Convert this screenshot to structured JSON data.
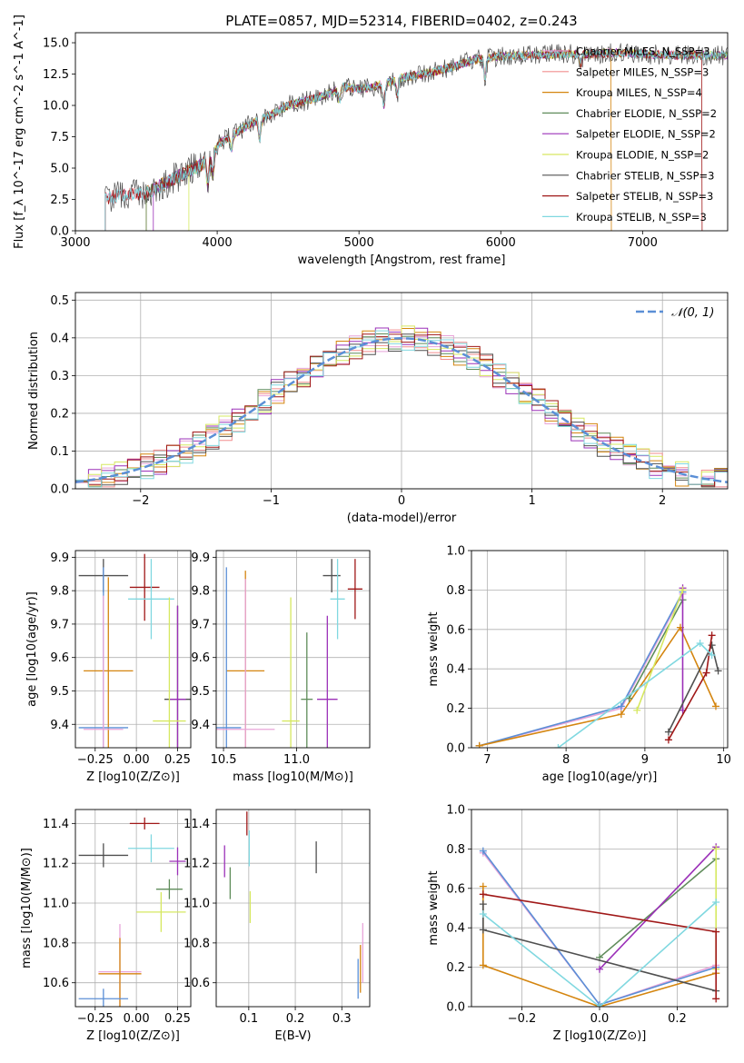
{
  "chart_data": [
    {
      "id": "spectrum",
      "type": "line",
      "title": "PLATE=0857, MJD=52314, FIBERID=0402, z=0.243",
      "xlabel": "wavelength [Angstrom, rest frame]",
      "ylabel": "Flux [f_λ 10^-17 erg cm^-2 s^-1 A^-1]",
      "xlim": [
        3000,
        7600
      ],
      "ylim": [
        0,
        15.8
      ],
      "xticks": [
        3000,
        4000,
        5000,
        6000,
        7000
      ],
      "yticks": [
        0.0,
        2.5,
        5.0,
        7.5,
        10.0,
        12.5,
        15.0
      ],
      "ytick_labels": [
        "0.0",
        "2.5",
        "5.0",
        "7.5",
        "10.0",
        "12.5",
        "15.0"
      ],
      "grid": false,
      "legend_position": "right",
      "continuum_x": [
        3200,
        3300,
        3400,
        3500,
        3600,
        3700,
        3800,
        3900,
        4000,
        4100,
        4200,
        4300,
        4400,
        4500,
        4600,
        4700,
        4800,
        4900,
        5000,
        5100,
        5200,
        5300,
        5400,
        5500,
        5600,
        5700,
        5800,
        5900,
        6000,
        6200,
        6400,
        6600,
        6800,
        7000,
        7200,
        7400
      ],
      "continuum_y": [
        2.5,
        2.8,
        2.9,
        3.0,
        3.6,
        4.2,
        4.8,
        5.3,
        6.8,
        7.6,
        8.3,
        8.9,
        9.4,
        10.0,
        10.3,
        10.6,
        11.0,
        11.5,
        11.3,
        11.5,
        11.8,
        12.2,
        12.4,
        12.6,
        12.9,
        13.2,
        13.6,
        13.8,
        13.9,
        14.0,
        14.1,
        14.1,
        14.2,
        14.1,
        14.0,
        14.0
      ],
      "series": [
        {
          "name": "Chabrier MILES, N_SSP=3",
          "color": "#e8a4d9"
        },
        {
          "name": "Salpeter MILES, N_SSP=3",
          "color": "#f28e8e"
        },
        {
          "name": "Kroupa MILES, N_SSP=4",
          "color": "#d4850f"
        },
        {
          "name": "Chabrier ELODIE, N_SSP=2",
          "color": "#5f8c5a"
        },
        {
          "name": "Salpeter ELODIE, N_SSP=2",
          "color": "#9b30b8"
        },
        {
          "name": "Kroupa ELODIE, N_SSP=2",
          "color": "#d6e860"
        },
        {
          "name": "Chabrier STELIB, N_SSP=3",
          "color": "#505050"
        },
        {
          "name": "Salpeter STELIB, N_SSP=3",
          "color": "#a01818"
        },
        {
          "name": "Kroupa STELIB, N_SSP=3",
          "color": "#80d8e0"
        }
      ]
    },
    {
      "id": "residuals",
      "type": "line",
      "xlabel": "(data-model)/error",
      "ylabel": "Normed distribution",
      "xlim": [
        -2.5,
        2.5
      ],
      "ylim": [
        0,
        0.52
      ],
      "xticks": [
        -2,
        -1,
        0,
        1,
        2
      ],
      "xtick_labels": [
        "−2",
        "−1",
        "0",
        "1",
        "2"
      ],
      "yticks": [
        0.0,
        0.1,
        0.2,
        0.3,
        0.4,
        0.5
      ],
      "ytick_labels": [
        "0.0",
        "0.1",
        "0.2",
        "0.3",
        "0.4",
        "0.5"
      ],
      "grid": true,
      "legend_position": "top-right",
      "reference": {
        "name": "𝒩(0, 1)",
        "color": "#5b8fd6",
        "style": "dashed"
      },
      "series": [
        {
          "color": "#e8a4d9"
        },
        {
          "color": "#f28e8e"
        },
        {
          "color": "#d4850f"
        },
        {
          "color": "#5f8c5a"
        },
        {
          "color": "#9b30b8"
        },
        {
          "color": "#d6e860"
        },
        {
          "color": "#505050"
        },
        {
          "color": "#a01818"
        },
        {
          "color": "#80d8e0"
        }
      ]
    },
    {
      "id": "age_vs_Z",
      "type": "scatter",
      "xlabel": "Z [log10(Z/Z⊙)]",
      "ylabel": "age  [log10(age/yr)]",
      "xlim": [
        -0.37,
        0.33
      ],
      "ylim": [
        9.33,
        9.92
      ],
      "xticks": [
        -0.25,
        0.0,
        0.25
      ],
      "xtick_labels": [
        "−0.25",
        "0.00",
        "0.25"
      ],
      "yticks": [
        9.4,
        9.5,
        9.6,
        9.7,
        9.8,
        9.9
      ],
      "ytick_labels": [
        "9.4",
        "9.5",
        "9.6",
        "9.7",
        "9.8",
        "9.9"
      ],
      "grid": true,
      "points": [
        {
          "color": "#505050",
          "x": -0.2,
          "y": 9.845,
          "xerr": 0.15,
          "yerr": 0.05
        },
        {
          "color": "#a01818",
          "x": 0.05,
          "y": 9.81,
          "xerr": 0.09,
          "yerr": 0.1
        },
        {
          "color": "#80d8e0",
          "x": 0.09,
          "y": 9.775,
          "xerr": 0.14,
          "yerr": 0.12
        },
        {
          "color": "#d4850f",
          "x": -0.17,
          "y": 9.56,
          "xerr": 0.15,
          "yerr": 0.28
        },
        {
          "color": "#505050",
          "x": 0.25,
          "y": 9.475,
          "xerr": 0.08,
          "yerr": 0.28
        },
        {
          "color": "#9b30b8",
          "x": 0.25,
          "y": 9.475,
          "xerr": 0.05,
          "yerr": 0.28
        },
        {
          "color": "#d6e860",
          "x": 0.2,
          "y": 9.41,
          "xerr": 0.1,
          "yerr": 0.37
        },
        {
          "color": "#5b8fd6",
          "x": -0.2,
          "y": 9.39,
          "xerr": 0.15,
          "yerr": 0.48
        },
        {
          "color": "#e8a4d9",
          "x": -0.2,
          "y": 9.385,
          "xerr": 0.12,
          "yerr": 0.4
        }
      ]
    },
    {
      "id": "age_vs_mass",
      "type": "scatter",
      "xlabel": "mass [log10(M/M⊙)]",
      "xlim": [
        10.45,
        11.5
      ],
      "ylim": [
        9.33,
        9.92
      ],
      "xticks": [
        10.5,
        11.0
      ],
      "xtick_labels": [
        "10.5",
        "11.0"
      ],
      "yticks": [
        9.4,
        9.5,
        9.6,
        9.7,
        9.8,
        9.9
      ],
      "ytick_labels": [
        "9.4",
        "9.5",
        "9.6",
        "9.7",
        "9.8",
        "9.9"
      ],
      "grid": true,
      "points": [
        {
          "color": "#505050",
          "x": 11.24,
          "y": 9.845,
          "xerr": 0.06,
          "yerr": 0.05
        },
        {
          "color": "#a01818",
          "x": 11.4,
          "y": 9.805,
          "xerr": 0.05,
          "yerr": 0.09
        },
        {
          "color": "#80d8e0",
          "x": 11.28,
          "y": 9.775,
          "xerr": 0.05,
          "yerr": 0.12
        },
        {
          "color": "#d4850f",
          "x": 10.65,
          "y": 9.56,
          "xerr": 0.13,
          "yerr": 0.3
        },
        {
          "color": "#5f8c5a",
          "x": 11.07,
          "y": 9.475,
          "xerr": 0.04,
          "yerr": 0.2
        },
        {
          "color": "#9b30b8",
          "x": 11.21,
          "y": 9.475,
          "xerr": 0.07,
          "yerr": 0.25
        },
        {
          "color": "#d6e860",
          "x": 10.96,
          "y": 9.41,
          "xerr": 0.06,
          "yerr": 0.37
        },
        {
          "color": "#5b8fd6",
          "x": 10.52,
          "y": 9.39,
          "xerr": 0.1,
          "yerr": 0.48
        },
        {
          "color": "#e8a4d9",
          "x": 10.65,
          "y": 9.385,
          "xerr": 0.2,
          "yerr": 0.45
        }
      ]
    },
    {
      "id": "mass_weight_vs_age",
      "type": "line",
      "xlabel": "age  [log10(age/yr)]",
      "ylabel": "mass weight",
      "xlim": [
        6.8,
        10.05
      ],
      "ylim": [
        0,
        1.0
      ],
      "xticks": [
        7,
        8,
        9,
        10
      ],
      "xtick_labels": [
        "7",
        "8",
        "9",
        "10"
      ],
      "yticks": [
        0.0,
        0.2,
        0.4,
        0.6,
        0.8,
        1.0
      ],
      "ytick_labels": [
        "0.0",
        "0.2",
        "0.4",
        "0.6",
        "0.8",
        "1.0"
      ],
      "grid": true,
      "series": [
        {
          "color": "#e8a4d9",
          "x": [
            6.9,
            8.7,
            9.48
          ],
          "y": [
            0.01,
            0.2,
            0.78
          ]
        },
        {
          "color": "#5b8fd6",
          "x": [
            6.9,
            8.7,
            9.48
          ],
          "y": [
            0.01,
            0.21,
            0.79
          ]
        },
        {
          "color": "#d4850f",
          "x": [
            6.9,
            8.7,
            9.45,
            9.9
          ],
          "y": [
            0.01,
            0.17,
            0.61,
            0.21
          ]
        },
        {
          "color": "#5f8c5a",
          "x": [
            8.8,
            9.48
          ],
          "y": [
            0.25,
            0.75
          ]
        },
        {
          "color": "#9b30b8",
          "x": [
            9.48,
            9.48
          ],
          "y": [
            0.19,
            0.81
          ]
        },
        {
          "color": "#d6e860",
          "x": [
            8.9,
            9.48
          ],
          "y": [
            0.19,
            0.8
          ]
        },
        {
          "color": "#505050",
          "x": [
            9.3,
            9.85,
            9.93
          ],
          "y": [
            0.08,
            0.52,
            0.39
          ]
        },
        {
          "color": "#a01818",
          "x": [
            9.3,
            9.78,
            9.85
          ],
          "y": [
            0.04,
            0.38,
            0.57
          ]
        },
        {
          "color": "#80d8e0",
          "x": [
            7.9,
            9.7,
            9.85
          ],
          "y": [
            0.0,
            0.53,
            0.47
          ]
        }
      ]
    },
    {
      "id": "mass_vs_Z",
      "type": "scatter",
      "xlabel": "Z [log10(Z/Z⊙)]",
      "ylabel": "mass [log10(M/M⊙)]",
      "xlim": [
        -0.37,
        0.33
      ],
      "ylim": [
        10.48,
        11.47
      ],
      "xticks": [
        -0.25,
        0.0,
        0.25
      ],
      "xtick_labels": [
        "−0.25",
        "0.00",
        "0.25"
      ],
      "yticks": [
        10.6,
        10.8,
        11.0,
        11.2,
        11.4
      ],
      "ytick_labels": [
        "10.6",
        "10.8",
        "11.0",
        "11.2",
        "11.4"
      ],
      "grid": true,
      "points": [
        {
          "color": "#a01818",
          "x": 0.05,
          "y": 11.4,
          "xerr": 0.09,
          "yerr": 0.03
        },
        {
          "color": "#80d8e0",
          "x": 0.09,
          "y": 11.275,
          "xerr": 0.14,
          "yerr": 0.07
        },
        {
          "color": "#9b30b8",
          "x": 0.25,
          "y": 11.21,
          "xerr": 0.05,
          "yerr": 0.07
        },
        {
          "color": "#505050",
          "x": -0.2,
          "y": 11.24,
          "xerr": 0.15,
          "yerr": 0.06
        },
        {
          "color": "#5f8c5a",
          "x": 0.2,
          "y": 11.07,
          "xerr": 0.08,
          "yerr": 0.05
        },
        {
          "color": "#d6e860",
          "x": 0.15,
          "y": 10.955,
          "xerr": 0.15,
          "yerr": 0.1
        },
        {
          "color": "#e8a4d9",
          "x": -0.1,
          "y": 10.655,
          "xerr": 0.13,
          "yerr": 0.24
        },
        {
          "color": "#d4850f",
          "x": -0.1,
          "y": 10.645,
          "xerr": 0.13,
          "yerr": 0.18
        },
        {
          "color": "#5b8fd6",
          "x": -0.2,
          "y": 10.52,
          "xerr": 0.15,
          "yerr": 0.05
        }
      ]
    },
    {
      "id": "mass_vs_ebv",
      "type": "scatter",
      "xlabel": "E(B-V)",
      "xlim": [
        0.03,
        0.36
      ],
      "ylim": [
        10.48,
        11.47
      ],
      "xticks": [
        0.1,
        0.2,
        0.3
      ],
      "xtick_labels": [
        "0.1",
        "0.2",
        "0.3"
      ],
      "yticks": [
        10.6,
        10.8,
        11.0,
        11.2,
        11.4
      ],
      "ytick_labels": [
        "10.6",
        "10.8",
        "11.0",
        "11.2",
        "11.4"
      ],
      "grid": true,
      "points": [
        {
          "color": "#a01818",
          "x": 0.096,
          "y": 11.4,
          "yerr": 0.06
        },
        {
          "color": "#80d8e0",
          "x": 0.101,
          "y": 11.275,
          "yerr": 0.09
        },
        {
          "color": "#9b30b8",
          "x": 0.048,
          "y": 11.21,
          "yerr": 0.08
        },
        {
          "color": "#505050",
          "x": 0.245,
          "y": 11.23,
          "yerr": 0.08
        },
        {
          "color": "#5f8c5a",
          "x": 0.06,
          "y": 11.1,
          "yerr": 0.08
        },
        {
          "color": "#d6e860",
          "x": 0.103,
          "y": 10.98,
          "yerr": 0.08
        },
        {
          "color": "#e8a4d9",
          "x": 0.345,
          "y": 10.75,
          "yerr": 0.15
        },
        {
          "color": "#d4850f",
          "x": 0.34,
          "y": 10.67,
          "yerr": 0.12
        },
        {
          "color": "#5b8fd6",
          "x": 0.335,
          "y": 10.62,
          "yerr": 0.1
        }
      ]
    },
    {
      "id": "mass_weight_vs_Z",
      "type": "line",
      "xlabel": "Z [log10(Z/Z⊙)]",
      "ylabel": "mass weight",
      "xlim": [
        -0.33,
        0.33
      ],
      "ylim": [
        0,
        1.0
      ],
      "xticks": [
        -0.2,
        0.0,
        0.2
      ],
      "xtick_labels": [
        "−0.2",
        "0.0",
        "0.2"
      ],
      "yticks": [
        0.0,
        0.2,
        0.4,
        0.6,
        0.8,
        1.0
      ],
      "ytick_labels": [
        "0.0",
        "0.2",
        "0.4",
        "0.6",
        "0.8",
        "1.0"
      ],
      "grid": true,
      "series": [
        {
          "color": "#e8a4d9",
          "x": [
            -0.3,
            0.0,
            0.3
          ],
          "y": [
            0.78,
            0.01,
            0.21
          ]
        },
        {
          "color": "#5b8fd6",
          "x": [
            -0.3,
            0.0,
            0.3
          ],
          "y": [
            0.79,
            0.01,
            0.2
          ]
        },
        {
          "color": "#d4850f",
          "x": [
            -0.3,
            -0.3,
            0.0,
            0.3,
            0.3
          ],
          "y": [
            0.61,
            0.21,
            0.0,
            0.17,
            0.17
          ]
        },
        {
          "color": "#5f8c5a",
          "x": [
            0.0,
            0.3
          ],
          "y": [
            0.25,
            0.75
          ]
        },
        {
          "color": "#9b30b8",
          "x": [
            0.0,
            0.3
          ],
          "y": [
            0.19,
            0.81
          ]
        },
        {
          "color": "#d6e860",
          "x": [
            0.3,
            0.3
          ],
          "y": [
            0.8,
            0.19
          ]
        },
        {
          "color": "#505050",
          "x": [
            -0.3,
            -0.3,
            0.3
          ],
          "y": [
            0.52,
            0.39,
            0.08
          ]
        },
        {
          "color": "#a01818",
          "x": [
            -0.3,
            0.3,
            0.3
          ],
          "y": [
            0.57,
            0.38,
            0.04
          ]
        },
        {
          "color": "#80d8e0",
          "x": [
            -0.3,
            0.0,
            0.3
          ],
          "y": [
            0.47,
            0.0,
            0.53
          ]
        }
      ]
    }
  ]
}
